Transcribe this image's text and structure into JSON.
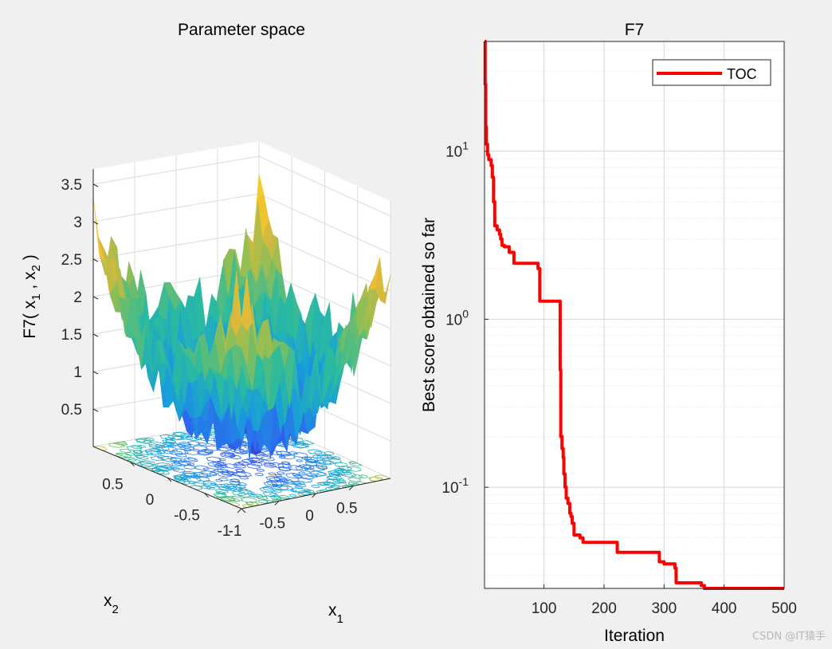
{
  "chart_data": [
    {
      "type": "surface3d",
      "title": "Parameter space",
      "xlabel": "x",
      "xlabel_sub": "1",
      "ylabel": "x",
      "ylabel_sub": "2",
      "zlabel": {
        "prefix": "F7( x",
        "sub1": "1",
        "mid": " , x",
        "sub2": "2",
        "suffix": " )"
      },
      "x_ticks": [
        "-1",
        "-0.5",
        "0",
        "0.5"
      ],
      "y_ticks": [
        "-1",
        "-0.5",
        "0",
        "0.5"
      ],
      "z_ticks": [
        "0.5",
        "1",
        "1.5",
        "2",
        "2.5",
        "3",
        "3.5"
      ],
      "xlim": [
        -1,
        1
      ],
      "ylim": [
        -1,
        1
      ],
      "zlim": [
        0,
        3.7
      ],
      "colormap": [
        "#3e26a8",
        "#2f63f2",
        "#199fd9",
        "#2bbb9e",
        "#8ebe55",
        "#f0b836",
        "#f6e620"
      ]
    },
    {
      "type": "line",
      "title": "F7",
      "xlabel": "Iteration",
      "ylabel": "Best score obtained so far",
      "yscale": "log",
      "xlim": [
        1,
        500
      ],
      "ylim": [
        0.025,
        45
      ],
      "x_ticks": [
        "100",
        "200",
        "300",
        "400",
        "500"
      ],
      "y_ticks": [
        {
          "base": "10",
          "exp": "1",
          "value": 10
        },
        {
          "base": "10",
          "exp": "0",
          "value": 1
        },
        {
          "base": "10",
          "exp": "-1",
          "value": 0.1
        }
      ],
      "legend": {
        "position": "top-right",
        "entries": [
          "TOC"
        ]
      },
      "series": [
        {
          "name": "TOC",
          "color": "#ff0000",
          "x": [
            1,
            2,
            3,
            4,
            6,
            8,
            12,
            14,
            16,
            18,
            22,
            26,
            28,
            30,
            34,
            42,
            50,
            70,
            90,
            93,
            126,
            127,
            128,
            130,
            132,
            133,
            135,
            137,
            140,
            143,
            145,
            147,
            150,
            160,
            165,
            218,
            222,
            288,
            292,
            300,
            318,
            320,
            362,
            367,
            500
          ],
          "y": [
            45,
            25,
            14,
            11,
            9.5,
            8.9,
            8.2,
            7.0,
            5.0,
            3.6,
            3.4,
            3.2,
            3.0,
            2.75,
            2.7,
            2.5,
            2.15,
            2.15,
            2.0,
            1.28,
            1.28,
            0.5,
            0.2,
            0.17,
            0.15,
            0.12,
            0.1,
            0.086,
            0.08,
            0.07,
            0.067,
            0.061,
            0.052,
            0.05,
            0.047,
            0.047,
            0.041,
            0.041,
            0.036,
            0.035,
            0.033,
            0.027,
            0.026,
            0.025,
            0.025
          ]
        }
      ]
    }
  ],
  "watermark": "CSDN @IT猿手"
}
